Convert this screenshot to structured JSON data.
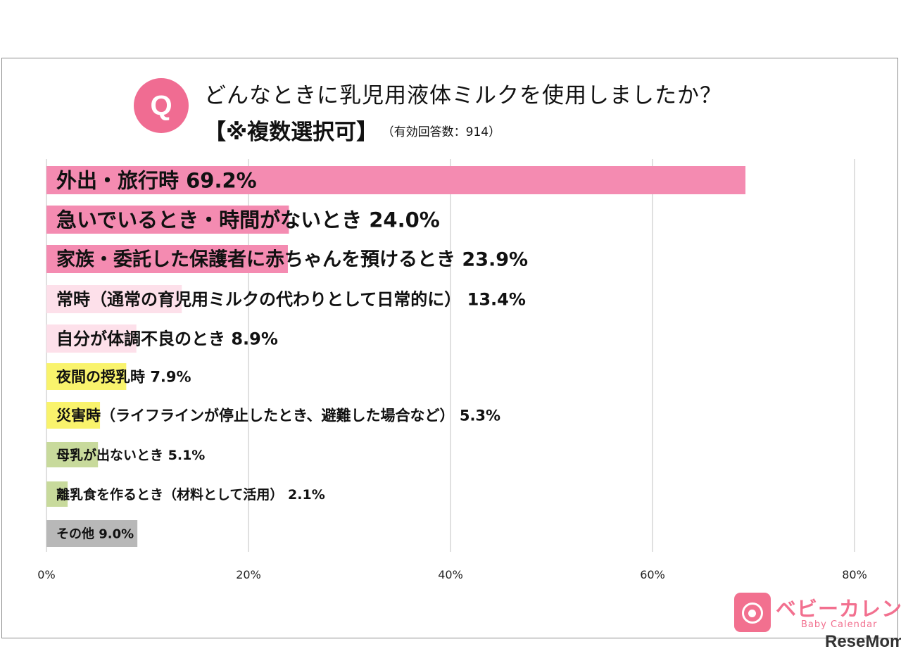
{
  "header": {
    "badge": "Q",
    "title": "どんなときに乳児用液体ミルクを使用しましたか？",
    "subtitle": "【※複数選択可】",
    "note": "（有効回答数：914）"
  },
  "chart_data": {
    "type": "bar",
    "orientation": "horizontal",
    "categories": [
      "外出・旅行時",
      "急いでいるとき・時間がないとき",
      "家族・委託した保護者に赤ちゃんを預けるとき",
      "常時（通常の育児用ミルクの代わりとして日常的に）",
      "自分が体調不良のとき",
      "夜間の授乳時",
      "災害時（ライフラインが停止したとき、避難した場合など）",
      "母乳が出ないとき",
      "離乳食を作るとき（材料として活用）",
      "その他"
    ],
    "values": [
      69.2,
      24.0,
      23.9,
      13.4,
      8.9,
      7.9,
      5.3,
      5.1,
      2.1,
      9.0
    ],
    "data_labels": [
      "69.2%",
      "24.0%",
      "23.9%",
      "13.4%",
      "8.9%",
      "7.9%",
      "5.3%",
      "5.1%",
      "2.1%",
      "9.0%"
    ],
    "colors": [
      "#f48bb1",
      "#f48bb1",
      "#f48bb1",
      "#fde0ea",
      "#fde0ea",
      "#f9f36c",
      "#f9f36c",
      "#c8da9c",
      "#c8da9c",
      "#b8b8b8"
    ],
    "xlim": [
      0,
      80
    ],
    "xticks": [
      "0%",
      "20%",
      "40%",
      "60%",
      "80%"
    ],
    "grid": true,
    "xlabel": "",
    "ylabel": ""
  },
  "branding": {
    "logo_jp": "ベビーカレンダー",
    "logo_en": "Baby Calendar",
    "watermark": "ReseMom"
  }
}
